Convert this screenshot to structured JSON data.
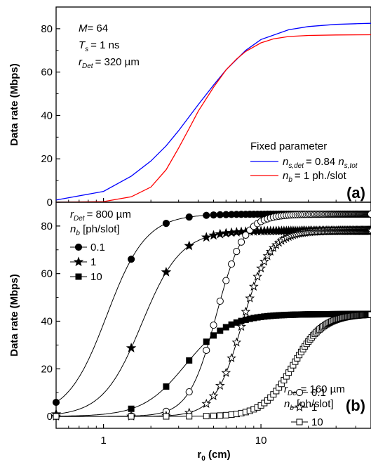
{
  "chart_data": [
    {
      "type": "line",
      "panel_label": "(a)",
      "xlabel": "",
      "ylabel": "Data rate (Mbps)",
      "xscale": "log",
      "xlim": [
        0.5,
        50
      ],
      "ylim": [
        0,
        90
      ],
      "yticks": [
        0,
        20,
        40,
        60,
        80
      ],
      "annotations": {
        "m_label": "M",
        "m_value": "= 64",
        "ts_label": "T",
        "ts_sub": "s",
        "ts_value": "= 1 ns",
        "rdet_label": "r",
        "rdet_sub": "Det",
        "rdet_value": "= 320 µm"
      },
      "legend": {
        "title": "Fixed parameter",
        "position": "lower-right",
        "entries": [
          {
            "pre": "n",
            "sub": "s,det",
            "post": "= 0.84 ",
            "pre2": "n",
            "sub2": "s,tot",
            "color": "#0000ff"
          },
          {
            "pre": "n",
            "sub": "b",
            "post": "= 1 ph./slot",
            "pre2": "",
            "sub2": "",
            "color": "#ff0000"
          }
        ]
      },
      "series": [
        {
          "color": "#0000ff",
          "x": [
            0.5,
            1,
            1.5,
            2,
            2.5,
            3,
            4,
            5,
            6,
            8,
            10,
            15,
            20,
            30,
            40,
            50
          ],
          "y": [
            1,
            5,
            12,
            19,
            26,
            33,
            45,
            54,
            61,
            70,
            75,
            79.5,
            81,
            82,
            82.3,
            82.5
          ]
        },
        {
          "color": "#ff0000",
          "x": [
            0.5,
            1,
            1.5,
            2,
            2.5,
            3,
            3.5,
            4,
            5,
            6,
            7,
            8,
            10,
            12,
            15,
            20,
            30,
            50
          ],
          "y": [
            0,
            0.3,
            2.5,
            7,
            15,
            25,
            34,
            42,
            53,
            61,
            66,
            69.5,
            73.5,
            75.3,
            76.4,
            76.9,
            77.1,
            77.2
          ]
        }
      ]
    },
    {
      "type": "line",
      "panel_label": "(b)",
      "xlabel_main": "r",
      "xlabel_sub": "0",
      "xlabel_unit": " (cm)",
      "ylabel": "Data rate (Mbps)",
      "xscale": "log",
      "xlim": [
        0.5,
        50
      ],
      "ylim": [
        -5,
        90
      ],
      "yticks": [
        0,
        20,
        40,
        60,
        80
      ],
      "xticks": [
        1,
        10
      ],
      "xtick_labels": [
        "1",
        "10"
      ],
      "legend_1": {
        "rdet_label": "r",
        "rdet_sub": "Det",
        "rdet_value": "= 800 µm",
        "nb_label": "n",
        "nb_sub": "b",
        "nb_unit": " [ph/slot]",
        "entries": [
          "0.1",
          "1",
          "10"
        ]
      },
      "legend_2": {
        "rdet_label": "r",
        "rdet_sub": "Det",
        "rdet_value": "= 160 µm",
        "nb_label": "n",
        "nb_sub": "b",
        "nb_unit": " [ph/slot]",
        "entries": [
          "0.1",
          "1",
          "10"
        ]
      },
      "series": [
        {
          "name": "0.1",
          "group": "800 µm",
          "marker": "circle-filled",
          "fit": [
            85,
            1.05,
            3.5
          ],
          "sample_x": [
            0.5,
            1.5,
            2.5,
            3.5,
            4.5
          ]
        },
        {
          "name": "1",
          "group": "800 µm",
          "marker": "star-filled",
          "fit": [
            78,
            1.75,
            3.5
          ],
          "sample_x": [
            0.5,
            1.5,
            2.5,
            3.5,
            4.5
          ]
        },
        {
          "name": "10",
          "group": "800 µm",
          "marker": "square-filled",
          "fit": [
            43,
            3.3,
            3.2
          ],
          "sample_x": [
            0.5,
            1.5,
            2.5,
            3.5,
            4.5
          ]
        },
        {
          "name": "0.1",
          "group": "160 µm",
          "marker": "circle-open",
          "fit": [
            85,
            5.2,
            5
          ],
          "sample_x": [
            0.5,
            1.5,
            2.5,
            3.5,
            4.5
          ]
        },
        {
          "name": "1",
          "group": "160 µm",
          "marker": "star-open",
          "fit": [
            78,
            7.6,
            5
          ],
          "sample_x": [
            0.5,
            1.5,
            2.5,
            3.5,
            4.5
          ]
        },
        {
          "name": "10",
          "group": "160 µm",
          "marker": "square-open",
          "fit": [
            43,
            16,
            4.5
          ],
          "sample_x": [
            0.5,
            1.5,
            2.5,
            3.5,
            4.5
          ]
        }
      ]
    }
  ]
}
